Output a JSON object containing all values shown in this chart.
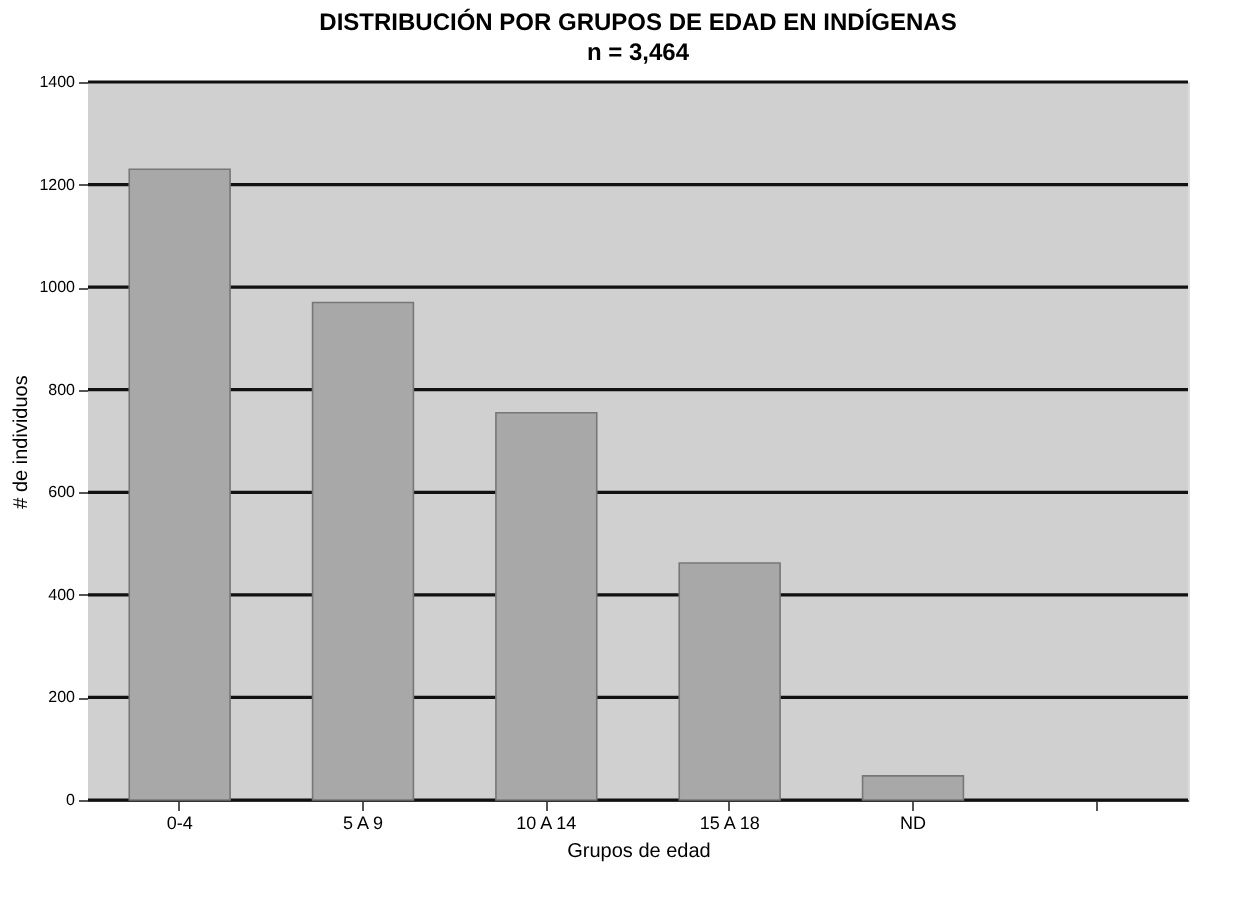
{
  "chart_data": {
    "type": "bar",
    "title": "DISTRIBUCIÓN POR GRUPOS DE EDAD EN INDÍGENAS",
    "subtitle": "n = 3,464",
    "xlabel": "Grupos de edad",
    "ylabel": "# de individuos",
    "categories": [
      "0-4",
      "5 A 9",
      "10 A 14",
      "15 A 18",
      "ND",
      null
    ],
    "values": [
      1230,
      970,
      755,
      462,
      47,
      null
    ],
    "color": "#a8a8a8",
    "ylim": [
      0,
      1400
    ],
    "yticks": [
      0,
      200,
      400,
      600,
      800,
      1000,
      1200,
      1400
    ],
    "grid": "y",
    "bands": [
      {
        "axis": "y",
        "from": 0,
        "to": 1400,
        "color": "#d0d0d0"
      }
    ]
  }
}
